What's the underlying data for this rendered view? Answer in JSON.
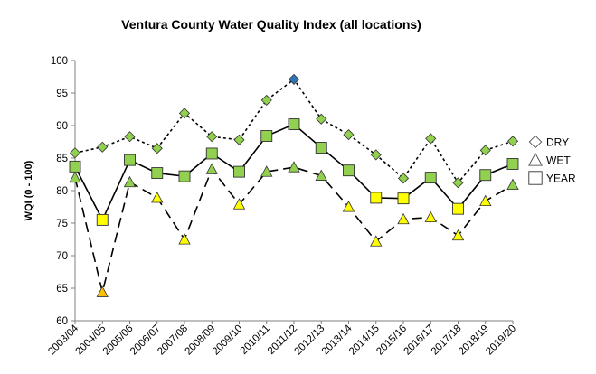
{
  "chart_data": {
    "type": "line",
    "title": "Ventura County Water Quality Index (all locations)",
    "ylabel": "WQI (0 - 100)",
    "xlabel": "",
    "ylim": [
      60,
      100
    ],
    "yticks": [
      60,
      65,
      70,
      75,
      80,
      85,
      90,
      95,
      100
    ],
    "grid": false,
    "legend_position": "right",
    "categories": [
      "2003/04",
      "2004/05",
      "2005/06",
      "2006/07",
      "2007/08",
      "2008/09",
      "2009/10",
      "2010/11",
      "2011/12",
      "2012/13",
      "2013/14",
      "2014/15",
      "2015/16",
      "2016/17",
      "2017/18",
      "2018/19",
      "2019/20"
    ],
    "series": [
      {
        "name": "DRY",
        "marker": "diamond",
        "line": "dotted",
        "color": "#92d050",
        "values": [
          85.8,
          86.7,
          88.3,
          86.5,
          91.9,
          88.3,
          87.8,
          93.9,
          97.1,
          91.0,
          88.6,
          85.5,
          81.9,
          88.0,
          81.2,
          86.2,
          87.6
        ],
        "highlight": {
          "index": 8,
          "color": "#2e75b6"
        }
      },
      {
        "name": "WET",
        "marker": "triangle",
        "line": "dashed",
        "color": "#92d050",
        "values": [
          82.0,
          64.4,
          81.3,
          78.9,
          72.5,
          83.3,
          77.9,
          82.9,
          83.6,
          82.3,
          77.5,
          72.2,
          75.6,
          75.9,
          73.1,
          78.4,
          80.9
        ],
        "highlight_color": "#ffff00",
        "highlight_indices": [
          3,
          4,
          6,
          10,
          11,
          12,
          13,
          14,
          15
        ],
        "alert_color": "#ffc000",
        "alert_indices": [
          1
        ]
      },
      {
        "name": "YEAR",
        "marker": "square",
        "line": "solid",
        "color": "#92d050",
        "values": [
          83.7,
          75.5,
          84.7,
          82.7,
          82.2,
          85.7,
          82.9,
          88.4,
          90.2,
          86.6,
          83.1,
          78.9,
          78.8,
          82.0,
          77.2,
          82.4,
          84.1
        ],
        "highlight_color": "#ffff00",
        "highlight_indices": [
          1,
          11,
          12,
          14
        ]
      }
    ]
  }
}
